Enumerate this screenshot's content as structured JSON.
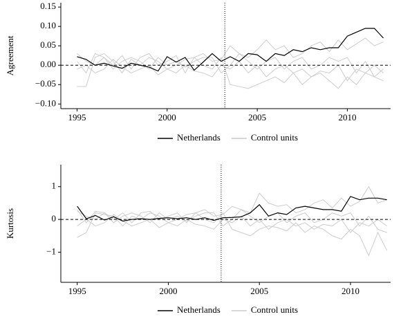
{
  "chart_data": [
    {
      "type": "line",
      "ylabel": "Agreement",
      "x": [
        1995,
        1995.5,
        1996,
        1996.5,
        1997,
        1997.5,
        1998,
        1998.5,
        1999,
        1999.5,
        2000,
        2000.5,
        2001,
        2001.5,
        2002,
        2002.5,
        2003,
        2003.5,
        2004,
        2004.5,
        2005,
        2005.5,
        2006,
        2006.5,
        2007,
        2007.5,
        2008,
        2008.5,
        2009,
        2009.5,
        2010,
        2010.5,
        2011,
        2011.5,
        2012
      ],
      "xlim": [
        1994.1,
        2012.4
      ],
      "xticks": [
        1995,
        2000,
        2005,
        2010
      ],
      "ylim": [
        -0.112,
        0.161
      ],
      "yticks": [
        {
          "value": -0.1,
          "label": "−0.10"
        },
        {
          "value": -0.05,
          "label": "−0.05"
        },
        {
          "value": 0,
          "label": "0.00"
        },
        0.05,
        {
          "value": 0.1,
          "label": "0.10"
        },
        0.15
      ],
      "hline": 0,
      "vline": 2003.2,
      "series": [
        {
          "name": "Control units",
          "color": "#cccccc",
          "values": [
            [
              -0.055,
              -0.055,
              0.02,
              0.03,
              0.01,
              -0.02,
              0.015,
              0.0,
              0.02,
              0.01,
              -0.01,
              0.0,
              0.015,
              0.02,
              0.0,
              -0.01,
              0.02,
              -0.05,
              -0.055,
              -0.06,
              -0.05,
              -0.04,
              -0.03,
              -0.045,
              -0.02,
              -0.05,
              -0.03,
              -0.02,
              -0.04,
              -0.06,
              -0.03,
              -0.05,
              -0.02,
              -0.03,
              -0.01
            ],
            [
              0.01,
              -0.02,
              0.03,
              0.02,
              0.0,
              0.025,
              -0.01,
              0.02,
              0.03,
              0.0,
              0.01,
              0.025,
              -0.02,
              0.02,
              0.03,
              0.01,
              0.015,
              0.05,
              0.03,
              0.02,
              0.04,
              0.065,
              0.04,
              0.05,
              0.02,
              0.03,
              0.05,
              0.06,
              0.035,
              0.065,
              0.04,
              0.055,
              0.07,
              0.05,
              0.06
            ],
            [
              -0.01,
              0.0,
              -0.02,
              -0.01,
              0.015,
              -0.005,
              -0.02,
              -0.01,
              0.0,
              -0.025,
              -0.01,
              -0.02,
              0.0,
              -0.015,
              -0.02,
              -0.03,
              0.0,
              -0.01,
              0.01,
              -0.02,
              0.0,
              -0.03,
              -0.01,
              0.0,
              -0.02,
              -0.01,
              -0.03,
              -0.015,
              -0.02,
              0.0,
              -0.04,
              -0.01,
              -0.02,
              0.0,
              -0.02
            ],
            [
              0.03,
              0.01,
              0.0,
              0.02,
              -0.01,
              0.01,
              0.02,
              0.01,
              -0.01,
              0.02,
              0.0,
              0.01,
              -0.005,
              0.01,
              0.02,
              0.02,
              -0.02,
              0.0,
              0.03,
              0.01,
              -0.01,
              0.01,
              0.02,
              -0.01,
              0.01,
              0.02,
              -0.01,
              0.0,
              0.02,
              0.01,
              0.02,
              -0.02,
              0.01,
              -0.03,
              -0.04
            ]
          ]
        },
        {
          "name": "Netherlands",
          "color": "#000000",
          "values": [
            0.022,
            0.015,
            0.0,
            0.005,
            -0.002,
            -0.008,
            0.005,
            0.0,
            -0.005,
            -0.015,
            0.022,
            0.008,
            0.02,
            -0.013,
            0.008,
            0.03,
            0.01,
            0.022,
            0.01,
            0.03,
            0.027,
            0.01,
            0.03,
            0.025,
            0.04,
            0.035,
            0.045,
            0.04,
            0.045,
            0.045,
            0.075,
            0.085,
            0.095,
            0.095,
            0.07
          ]
        }
      ]
    },
    {
      "type": "line",
      "ylabel": "Kurtosis",
      "x": [
        1995,
        1995.5,
        1996,
        1996.5,
        1997,
        1997.5,
        1998,
        1998.5,
        1999,
        1999.5,
        2000,
        2000.5,
        2001,
        2001.5,
        2002,
        2002.5,
        2003,
        2003.5,
        2004,
        2004.5,
        2005,
        2005.5,
        2006,
        2006.5,
        2007,
        2007.5,
        2008,
        2008.5,
        2009,
        2009.5,
        2010,
        2010.5,
        2011,
        2011.5,
        2012
      ],
      "xlim": [
        1994.1,
        2012.2
      ],
      "xticks": [
        1995,
        2000,
        2005,
        2010
      ],
      "ylim": [
        -1.92,
        1.67
      ],
      "yticks": [
        {
          "value": -1,
          "label": "−1"
        },
        0,
        1
      ],
      "hline": 0,
      "vline": 2002.9,
      "series": [
        {
          "name": "Control units",
          "color": "#cccccc",
          "values": [
            [
              -0.55,
              -0.4,
              0.2,
              0.15,
              0.1,
              -0.2,
              0.1,
              0.0,
              0.2,
              0.1,
              -0.1,
              0.0,
              0.15,
              0.2,
              0.0,
              -0.1,
              0.2,
              -0.3,
              -0.4,
              -0.5,
              -0.3,
              -0.2,
              -0.25,
              -0.35,
              -0.1,
              -0.4,
              -0.2,
              -0.3,
              -0.5,
              -0.6,
              -0.3,
              -0.5,
              -1.1,
              -0.4,
              -0.95
            ],
            [
              0.3,
              -0.1,
              0.25,
              0.2,
              0.0,
              0.2,
              -0.1,
              0.2,
              0.25,
              0.0,
              0.1,
              0.2,
              -0.1,
              0.2,
              0.3,
              0.1,
              0.15,
              0.4,
              0.3,
              0.2,
              0.8,
              0.5,
              0.4,
              0.45,
              0.2,
              0.3,
              0.5,
              0.6,
              0.35,
              0.65,
              0.4,
              0.55,
              1.0,
              0.5,
              0.6
            ],
            [
              -0.2,
              0.0,
              -0.2,
              -0.1,
              0.15,
              -0.05,
              -0.2,
              -0.1,
              0.0,
              -0.25,
              -0.1,
              -0.2,
              0.0,
              -0.15,
              -0.2,
              -0.3,
              0.0,
              -0.1,
              0.1,
              -0.2,
              0.0,
              -0.3,
              -0.1,
              0.0,
              -0.2,
              -0.1,
              -0.3,
              -0.15,
              -0.2,
              0.0,
              -0.4,
              -0.1,
              -0.2,
              0.0,
              -0.2
            ],
            [
              0.25,
              0.1,
              0.0,
              0.2,
              -0.1,
              0.1,
              0.2,
              0.1,
              -0.1,
              0.2,
              0.0,
              0.1,
              -0.05,
              0.1,
              0.2,
              0.2,
              -0.2,
              0.0,
              0.3,
              0.1,
              -0.1,
              0.1,
              0.2,
              -0.1,
              0.1,
              0.2,
              -0.1,
              0.0,
              0.2,
              0.1,
              0.2,
              -0.2,
              0.1,
              -0.3,
              -0.4
            ]
          ]
        },
        {
          "name": "Netherlands",
          "color": "#000000",
          "values": [
            0.4,
            0.02,
            0.12,
            -0.02,
            0.08,
            -0.05,
            0.0,
            0.02,
            0.0,
            0.03,
            0.05,
            0.02,
            0.05,
            0.0,
            0.05,
            -0.03,
            0.05,
            0.06,
            0.08,
            0.2,
            0.45,
            0.1,
            0.2,
            0.15,
            0.35,
            0.4,
            0.35,
            0.3,
            0.3,
            0.25,
            0.7,
            0.6,
            0.65,
            0.65,
            0.6
          ]
        }
      ]
    }
  ]
}
